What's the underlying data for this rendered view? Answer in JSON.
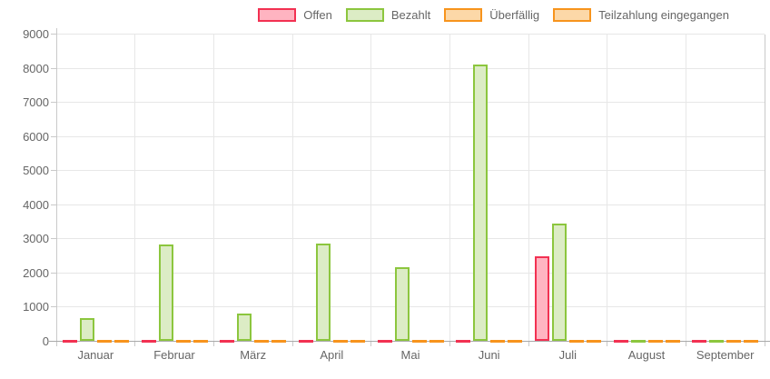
{
  "chart_data": {
    "type": "bar",
    "title": "",
    "xlabel": "",
    "ylabel": "",
    "categories": [
      "Januar",
      "Februar",
      "März",
      "April",
      "Mai",
      "Juni",
      "Juli",
      "August",
      "September"
    ],
    "series": [
      {
        "name": "Offen",
        "border_color": "#f23152",
        "fill_color": "#ffb4c1",
        "values": [
          0,
          0,
          0,
          0,
          0,
          0,
          2490,
          0,
          0
        ]
      },
      {
        "name": "Bezahlt",
        "border_color": "#8cc63e",
        "fill_color": "#dcecc5",
        "values": [
          690,
          2830,
          810,
          2870,
          2170,
          8120,
          3460,
          0,
          0
        ]
      },
      {
        "name": "Überfällig",
        "border_color": "#f7941d",
        "fill_color": "#fcd8a8",
        "values": [
          0,
          0,
          0,
          0,
          0,
          0,
          0,
          0,
          0
        ]
      },
      {
        "name": "Teilzahlung eingegangen",
        "border_color": "#f7941d",
        "fill_color": "#fcd8a8",
        "values": [
          0,
          0,
          0,
          0,
          0,
          0,
          0,
          0,
          0
        ]
      }
    ],
    "y_ticks": [
      0,
      1000,
      2000,
      3000,
      4000,
      5000,
      6000,
      7000,
      8000,
      9000
    ],
    "ylim": [
      0,
      9000
    ],
    "legend_position": "top-right",
    "grid": true,
    "colors": {
      "grid_color": "#e7e7e7",
      "axis_color": "#a9a9a9",
      "minor_axis_color": "#c9c9c9",
      "tick_text_color": "#666666",
      "background": "#ffffff"
    }
  }
}
